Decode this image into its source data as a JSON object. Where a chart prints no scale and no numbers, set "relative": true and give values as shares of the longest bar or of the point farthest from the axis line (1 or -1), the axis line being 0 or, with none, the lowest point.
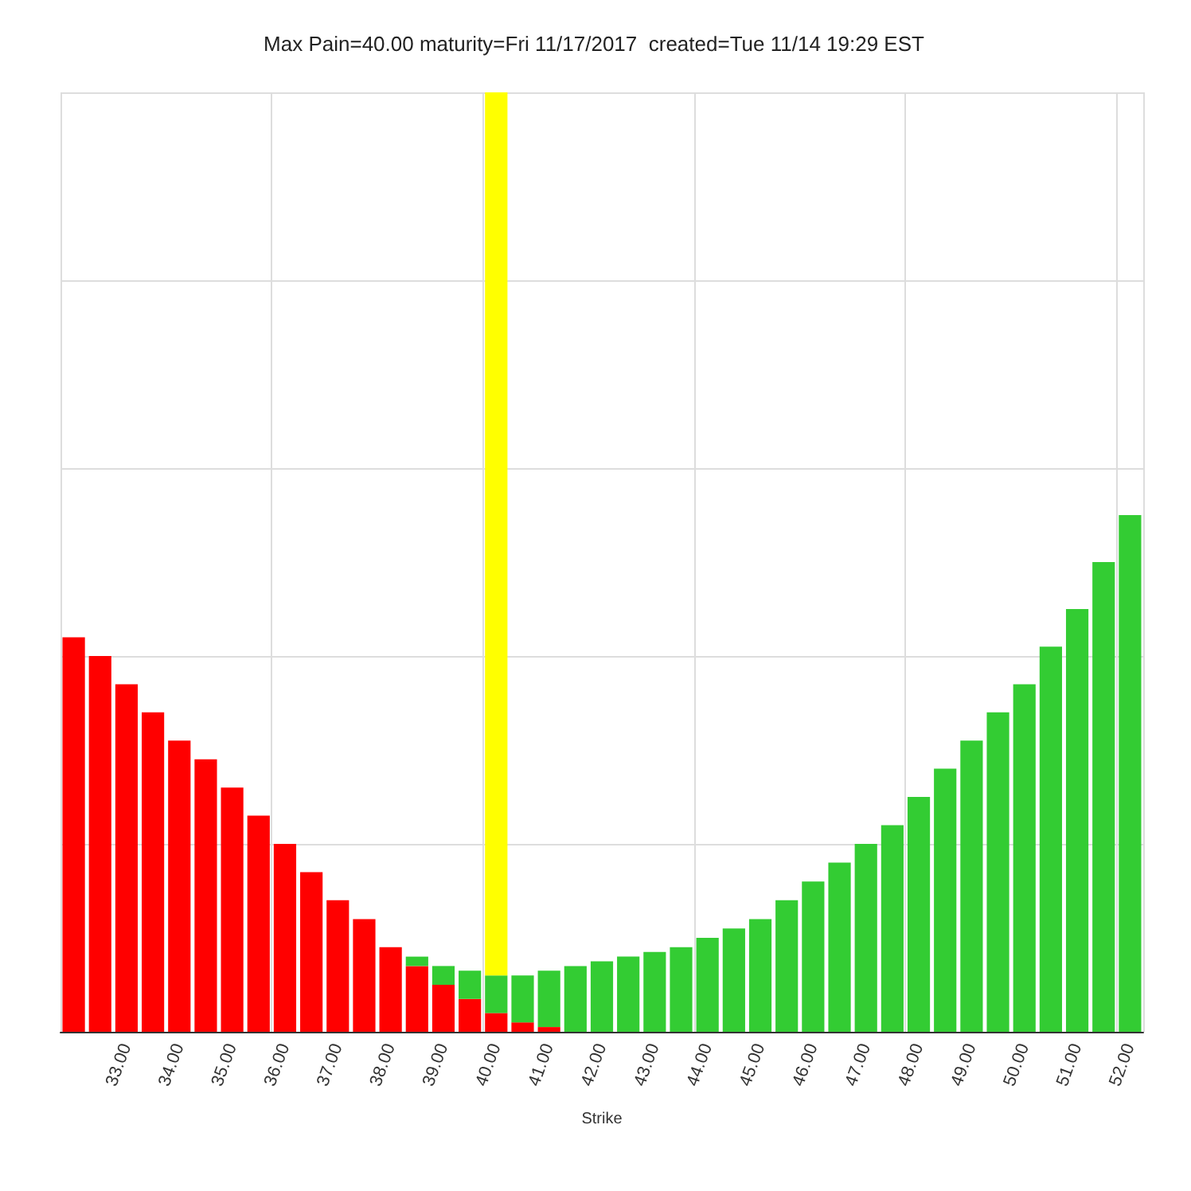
{
  "chart_data": {
    "type": "bar",
    "title": "Max Pain=40.00 maturity=Fri 11/17/2017  created=Tue 11/14 19:29 EST",
    "xlabel": "Strike",
    "relative": true,
    "stacked": true,
    "grid": true,
    "categories": [
      null,
      null,
      "33.00",
      null,
      "34.00",
      null,
      "35.00",
      null,
      "36.00",
      null,
      "37.00",
      null,
      "38.00",
      null,
      "39.00",
      null,
      "40.00",
      null,
      "41.00",
      null,
      "42.00",
      null,
      "43.00",
      null,
      "44.00",
      null,
      "45.00",
      null,
      "46.00",
      null,
      "47.00",
      null,
      "48.00",
      null,
      "49.00",
      null,
      "50.00",
      null,
      "51.00",
      null,
      "52.00"
    ],
    "series": [
      {
        "color": "#ff0000",
        "values": [
          0.42,
          0.4,
          0.37,
          0.34,
          0.31,
          0.29,
          0.26,
          0.23,
          0.2,
          0.17,
          0.14,
          0.12,
          0.09,
          0.07,
          0.05,
          0.035,
          0.02,
          0.01,
          0.005,
          0,
          0,
          0,
          0,
          0,
          0,
          0,
          0,
          0,
          0,
          0,
          0,
          0,
          0,
          0,
          0,
          0,
          0,
          0,
          0,
          0,
          0
        ]
      },
      {
        "color": "#33cc33",
        "values": [
          0,
          0,
          0,
          0,
          0,
          0,
          0,
          0,
          0,
          0,
          0,
          0,
          0,
          0.01,
          0.02,
          0.03,
          0.04,
          0.05,
          0.06,
          0.07,
          0.075,
          0.08,
          0.085,
          0.09,
          0.1,
          0.11,
          0.12,
          0.14,
          0.16,
          0.18,
          0.2,
          0.22,
          0.25,
          0.28,
          0.31,
          0.34,
          0.37,
          0.41,
          0.45,
          0.5,
          0.55
        ]
      },
      {
        "color": "#ffff00",
        "values": [
          null,
          null,
          null,
          null,
          null,
          null,
          null,
          null,
          null,
          null,
          null,
          null,
          null,
          null,
          null,
          null,
          0.94,
          null,
          null,
          null,
          null,
          null,
          null,
          null,
          null,
          null,
          null,
          null,
          null,
          null,
          null,
          null,
          null,
          null,
          null,
          null,
          null,
          null,
          null,
          null,
          null
        ]
      }
    ]
  }
}
